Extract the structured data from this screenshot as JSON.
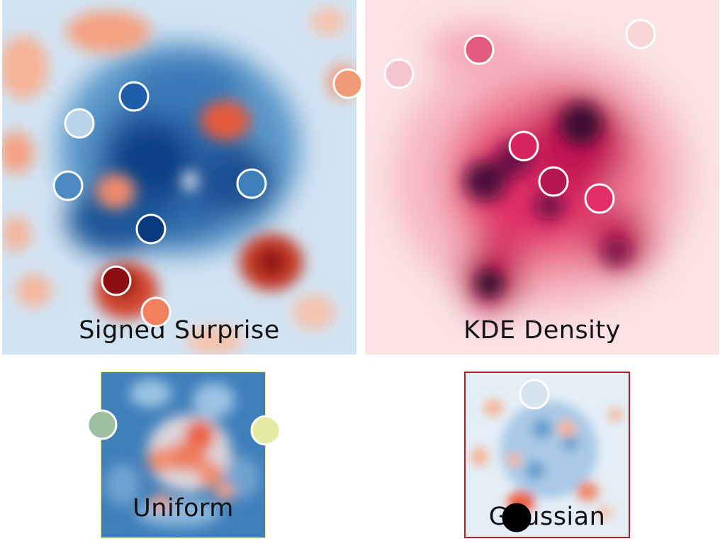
{
  "panels": {
    "surprise": {
      "label": "Signed Surprise"
    },
    "kde": {
      "label": "KDE Density"
    },
    "uniform": {
      "label": "Uniform"
    },
    "gaussian": {
      "label": "Gaussian"
    }
  },
  "colors": {
    "diverging_blue_dark": "#08306b",
    "diverging_blue_mid": "#3f7fba",
    "diverging_blue_light": "#c6dbef",
    "diverging_white": "#f7f7f7",
    "diverging_red_light": "#fcbba1",
    "diverging_red_mid": "#ef6548",
    "diverging_red_dark": "#7f0000",
    "kde_light": "#fde0e0",
    "kde_mid": "#e0245e",
    "kde_dark": "#2a0a2a",
    "uniform_border": "#e0e89a",
    "gaussian_border": "#a82328",
    "marker_stroke": "#ffffff"
  }
}
